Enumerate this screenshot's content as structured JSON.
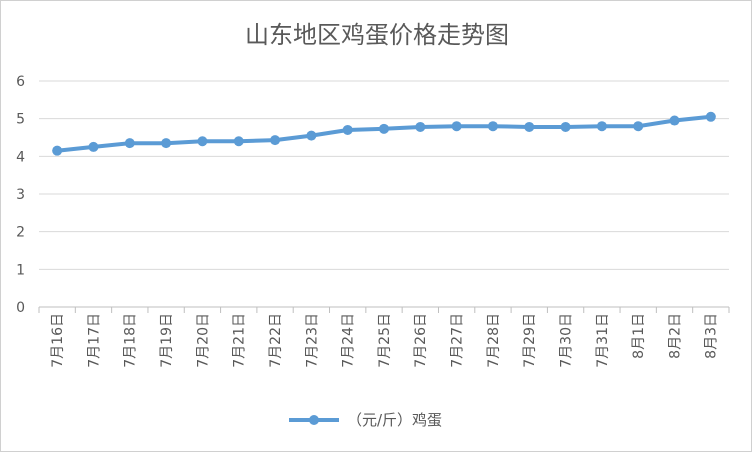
{
  "chart_data": {
    "type": "line",
    "title": "山东地区鸡蛋价格走势图",
    "categories": [
      "7月16日",
      "7月17日",
      "7月18日",
      "7月19日",
      "7月20日",
      "7月21日",
      "7月22日",
      "7月23日",
      "7月24日",
      "7月25日",
      "7月26日",
      "7月27日",
      "7月28日",
      "7月29日",
      "7月30日",
      "7月31日",
      "8月1日",
      "8月2日",
      "8月3日"
    ],
    "series": [
      {
        "name": "（元/斤）鸡蛋",
        "values": [
          4.15,
          4.25,
          4.35,
          4.35,
          4.4,
          4.4,
          4.43,
          4.55,
          4.7,
          4.73,
          4.78,
          4.8,
          4.8,
          4.78,
          4.78,
          4.8,
          4.8,
          4.95,
          5.05
        ],
        "color": "#5b9bd5"
      }
    ],
    "yticks": [
      "0",
      "1",
      "2",
      "3",
      "4",
      "5",
      "6"
    ],
    "ylim": [
      0,
      6
    ],
    "grid": true,
    "legend": "bottom"
  }
}
